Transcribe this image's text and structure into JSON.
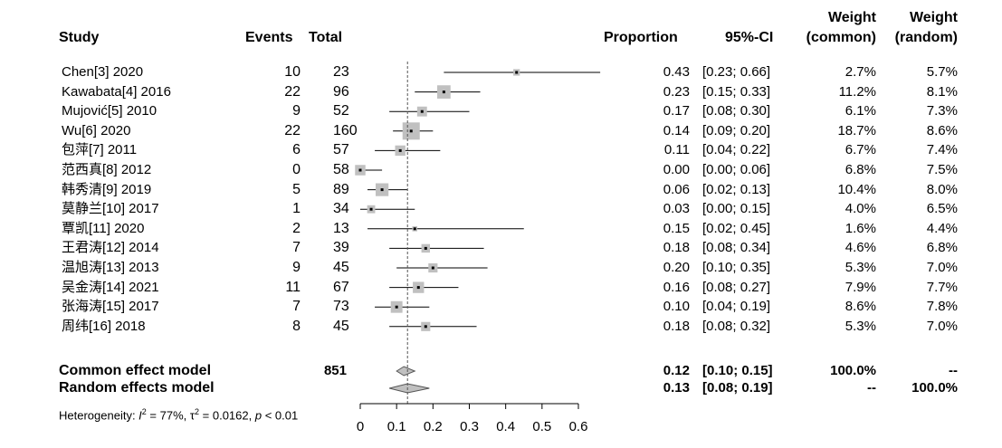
{
  "headers": {
    "study": "Study",
    "events": "Events",
    "total": "Total",
    "proportion": "Proportion",
    "ci": "95%-CI",
    "weight_common": [
      "Weight",
      "(common)"
    ],
    "weight_random": [
      "Weight",
      "(random)"
    ]
  },
  "heterogeneity": {
    "prefix": "Heterogeneity: ",
    "i2_label": "I",
    "i2_value": " = 77%, τ",
    "tau2_value": " = 0.0162, ",
    "p_label": "p",
    "p_value": " < 0.01"
  },
  "chart_data": {
    "type": "forest",
    "xlim": [
      0,
      0.6
    ],
    "x_ticks": [
      "0",
      "0.1",
      "0.2",
      "0.3",
      "0.4",
      "0.5",
      "0.6"
    ],
    "x_tick_values": [
      0,
      0.1,
      0.2,
      0.3,
      0.4,
      0.5,
      0.6
    ],
    "reference_line": 0.13,
    "studies": [
      {
        "study": "Chen[3] 2020",
        "events": "10",
        "total": "23",
        "proportion": "0.43",
        "ci": "[0.23; 0.66]",
        "w_common": "2.7%",
        "w_random": "5.7%",
        "est": 0.43,
        "lo": 0.23,
        "hi": 0.66
      },
      {
        "study": "Kawabata[4] 2016",
        "events": "22",
        "total": "96",
        "proportion": "0.23",
        "ci": "[0.15; 0.33]",
        "w_common": "11.2%",
        "w_random": "8.1%",
        "est": 0.23,
        "lo": 0.15,
        "hi": 0.33
      },
      {
        "study": "Mujović[5] 2010",
        "events": "9",
        "total": "52",
        "proportion": "0.17",
        "ci": "[0.08; 0.30]",
        "w_common": "6.1%",
        "w_random": "7.3%",
        "est": 0.17,
        "lo": 0.08,
        "hi": 0.3
      },
      {
        "study": "Wu[6] 2020",
        "events": "22",
        "total": "160",
        "proportion": "0.14",
        "ci": "[0.09; 0.20]",
        "w_common": "18.7%",
        "w_random": "8.6%",
        "est": 0.14,
        "lo": 0.09,
        "hi": 0.2
      },
      {
        "study": "包萍[7] 2011",
        "events": "6",
        "total": "57",
        "proportion": "0.11",
        "ci": "[0.04; 0.22]",
        "w_common": "6.7%",
        "w_random": "7.4%",
        "est": 0.11,
        "lo": 0.04,
        "hi": 0.22
      },
      {
        "study": "范西真[8] 2012",
        "events": "0",
        "total": "58",
        "proportion": "0.00",
        "ci": "[0.00; 0.06]",
        "w_common": "6.8%",
        "w_random": "7.5%",
        "est": 0.0,
        "lo": 0.0,
        "hi": 0.06
      },
      {
        "study": "韩秀清[9] 2019",
        "events": "5",
        "total": "89",
        "proportion": "0.06",
        "ci": "[0.02; 0.13]",
        "w_common": "10.4%",
        "w_random": "8.0%",
        "est": 0.06,
        "lo": 0.02,
        "hi": 0.13
      },
      {
        "study": "莫静兰[10] 2017",
        "events": "1",
        "total": "34",
        "proportion": "0.03",
        "ci": "[0.00; 0.15]",
        "w_common": "4.0%",
        "w_random": "6.5%",
        "est": 0.03,
        "lo": 0.0,
        "hi": 0.15
      },
      {
        "study": "覃凯[11] 2020",
        "events": "2",
        "total": "13",
        "proportion": "0.15",
        "ci": "[0.02; 0.45]",
        "w_common": "1.6%",
        "w_random": "4.4%",
        "est": 0.15,
        "lo": 0.02,
        "hi": 0.45
      },
      {
        "study": "王君涛[12] 2014",
        "events": "7",
        "total": "39",
        "proportion": "0.18",
        "ci": "[0.08; 0.34]",
        "w_common": "4.6%",
        "w_random": "6.8%",
        "est": 0.18,
        "lo": 0.08,
        "hi": 0.34
      },
      {
        "study": "温旭涛[13] 2013",
        "events": "9",
        "total": "45",
        "proportion": "0.20",
        "ci": "[0.10; 0.35]",
        "w_common": "5.3%",
        "w_random": "7.0%",
        "est": 0.2,
        "lo": 0.1,
        "hi": 0.35
      },
      {
        "study": "吴金涛[14] 2021",
        "events": "11",
        "total": "67",
        "proportion": "0.16",
        "ci": "[0.08; 0.27]",
        "w_common": "7.9%",
        "w_random": "7.7%",
        "est": 0.16,
        "lo": 0.08,
        "hi": 0.27
      },
      {
        "study": "张海涛[15] 2017",
        "events": "7",
        "total": "73",
        "proportion": "0.10",
        "ci": "[0.04; 0.19]",
        "w_common": "8.6%",
        "w_random": "7.8%",
        "est": 0.1,
        "lo": 0.04,
        "hi": 0.19
      },
      {
        "study": "周纬[16] 2018",
        "events": "8",
        "total": "45",
        "proportion": "0.18",
        "ci": "[0.08; 0.32]",
        "w_common": "5.3%",
        "w_random": "7.0%",
        "est": 0.18,
        "lo": 0.08,
        "hi": 0.32
      }
    ],
    "summaries": [
      {
        "label": "Common effect model",
        "total": "851",
        "proportion": "0.12",
        "ci": "[0.10; 0.15]",
        "w_common": "100.0%",
        "w_random": "--",
        "est": 0.12,
        "lo": 0.1,
        "hi": 0.15
      },
      {
        "label": "Random effects model",
        "total": "",
        "proportion": "0.13",
        "ci": "[0.08; 0.19]",
        "w_common": "--",
        "w_random": "100.0%",
        "est": 0.13,
        "lo": 0.08,
        "hi": 0.19
      }
    ]
  }
}
